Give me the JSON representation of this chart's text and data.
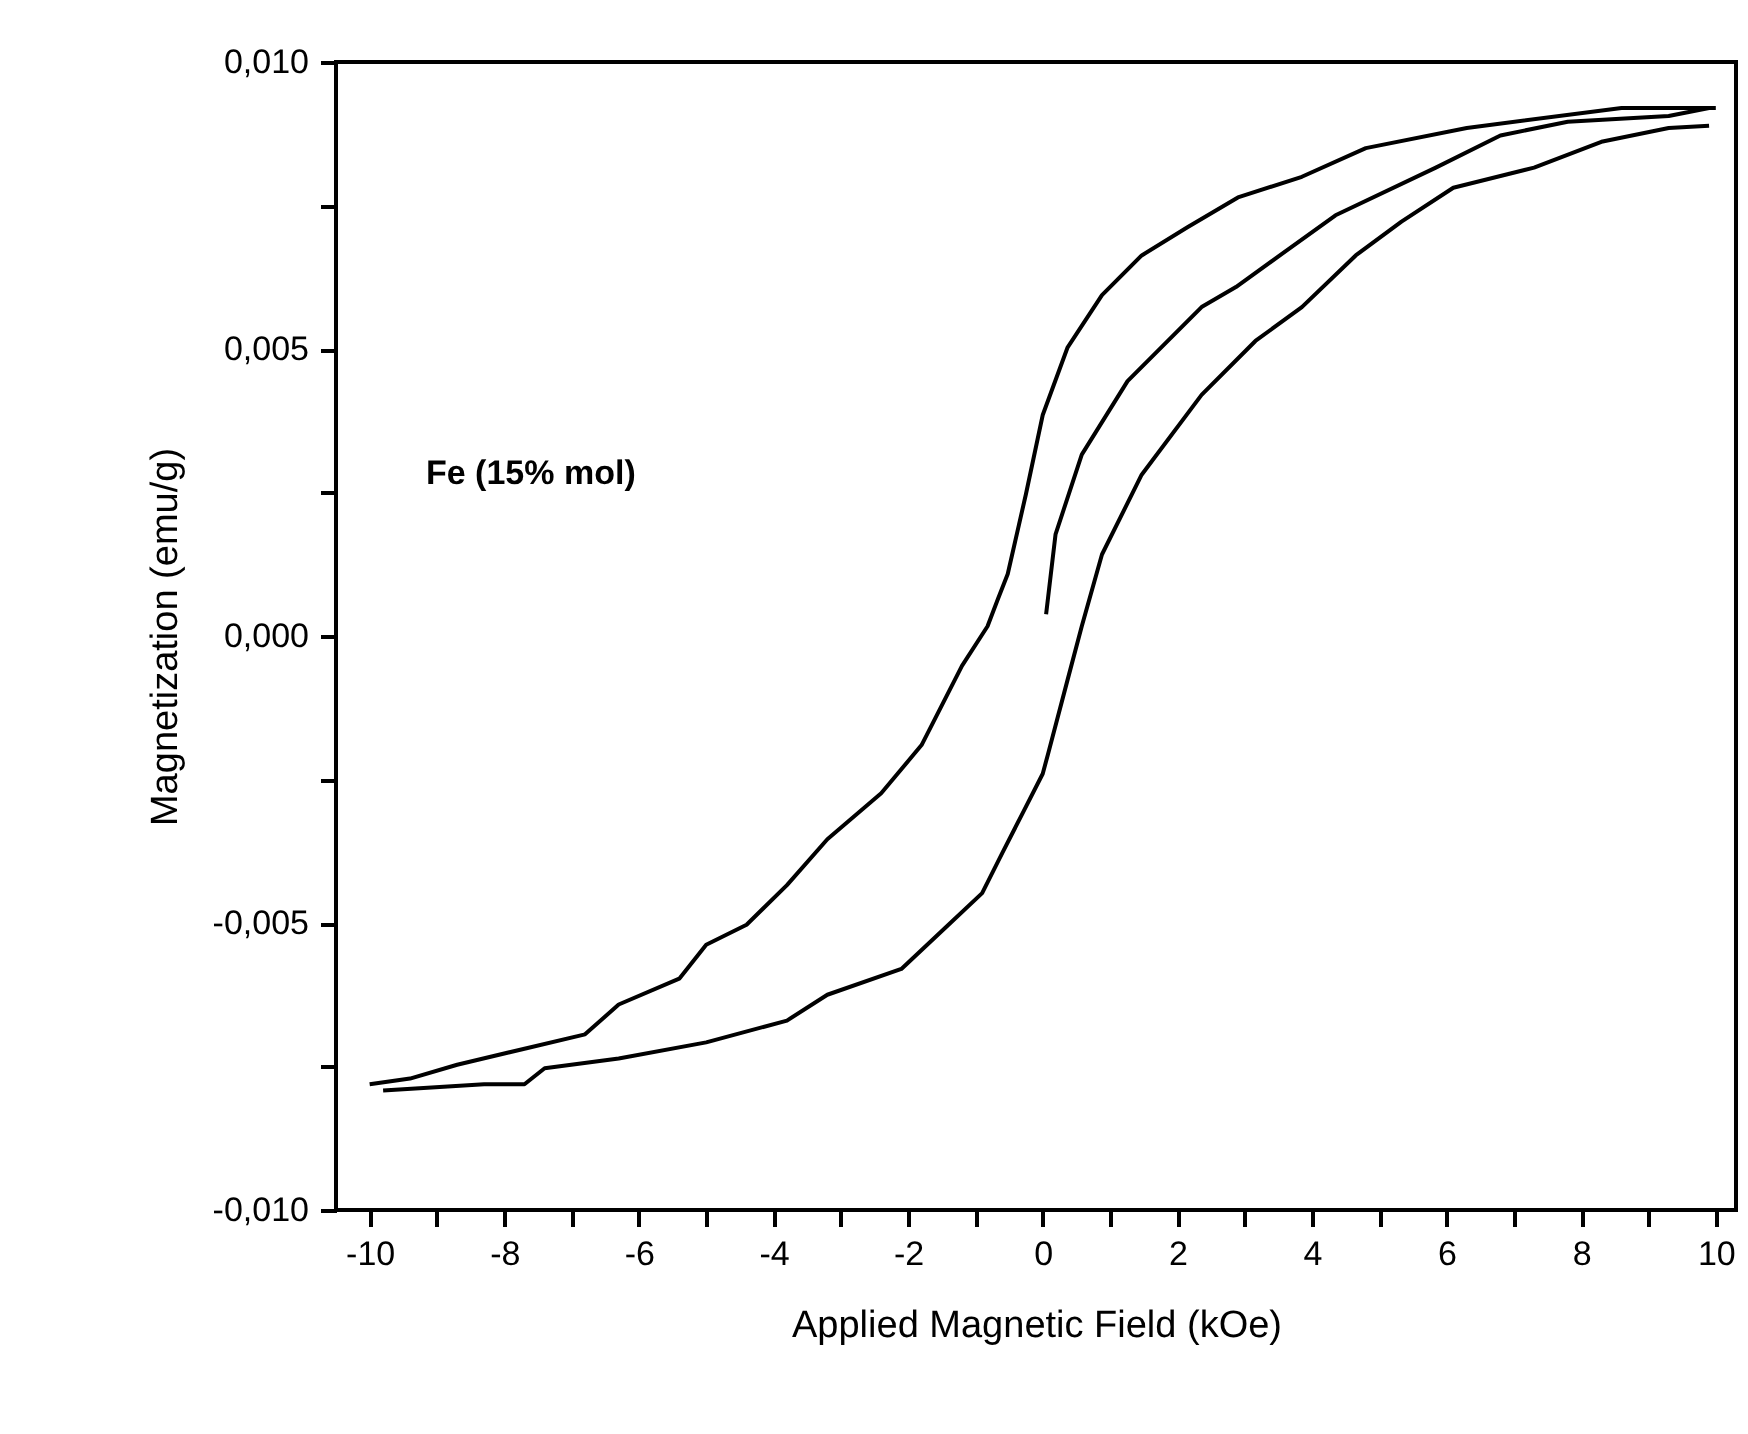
{
  "chart_data": {
    "type": "line",
    "xlabel": "Applied Magnetic Field (kOe)",
    "ylabel": "Magnetization (emu/g)",
    "annotations": [
      "Fe (15% mol)"
    ],
    "xlim": [
      -10.5,
      10.3
    ],
    "ylim": [
      -0.01,
      0.01
    ],
    "xticks": [
      -10,
      {
        "value": -9,
        "label": null
      },
      -8,
      {
        "value": -7,
        "label": null
      },
      -6,
      {
        "value": -5,
        "label": null
      },
      -4,
      {
        "value": -3,
        "label": null
      },
      -2,
      {
        "value": -1,
        "label": null
      },
      0,
      {
        "value": 1,
        "label": null
      },
      2,
      {
        "value": 3,
        "label": null
      },
      4,
      {
        "value": 5,
        "label": null
      },
      6,
      {
        "value": 7,
        "label": null
      },
      8,
      {
        "value": 9,
        "label": null
      },
      10
    ],
    "yticks": [
      {
        "value": -0.01,
        "label": "-0,010"
      },
      {
        "value": -0.0075,
        "label": null
      },
      {
        "value": -0.005,
        "label": "-0,005"
      },
      {
        "value": -0.0025,
        "label": null
      },
      {
        "value": 0,
        "label": "0,000"
      },
      {
        "value": 0.0025,
        "label": null
      },
      {
        "value": 0.005,
        "label": "0,005"
      },
      {
        "value": 0.0075,
        "label": null
      },
      {
        "value": 0.01,
        "label": "0,010"
      }
    ],
    "grid": false,
    "legend": false,
    "marker": "none",
    "line_style": "solid",
    "series": [
      {
        "color": "#000000",
        "x": [
          0.05,
          0.19,
          0.58,
          1.26,
          2.36,
          2.87,
          4.35,
          5.84,
          6.8,
          7.8,
          9.3,
          9.9
        ],
        "values": [
          0.00038,
          0.00177,
          0.00316,
          0.00444,
          0.00573,
          0.00608,
          0.00733,
          0.00816,
          0.00872,
          0.00896,
          0.00906,
          0.0092
        ]
      },
      {
        "color": "#000000",
        "x": [
          10,
          8.6,
          6.3,
          4.8,
          3.85,
          2.9,
          2.15,
          1.47,
          0.88,
          0.37,
          0,
          -0.25,
          -0.52,
          -0.67,
          -0.82,
          -1.2,
          -1.8,
          -2.4,
          -3.2,
          -3.8,
          -4.4,
          -5.0,
          -5.4,
          -6.3,
          -6.8,
          -7.7,
          -8.7,
          -9.4,
          -10
        ],
        "values": [
          0.0092,
          0.0092,
          0.00885,
          0.0085,
          0.008,
          0.00764,
          0.00712,
          0.00663,
          0.00594,
          0.00503,
          0.00385,
          0.00247,
          0.00108,
          0.00063,
          0.00017,
          -0.00052,
          -0.0019,
          -0.00274,
          -0.00354,
          -0.00434,
          -0.00503,
          -0.00538,
          -0.00597,
          -0.00642,
          -0.00694,
          -0.00719,
          -0.00747,
          -0.00771,
          -0.00781
        ]
      },
      {
        "color": "#000000",
        "x": [
          -9.8,
          -8.3,
          -7.7,
          -7.4,
          -6.3,
          -5.0,
          -3.8,
          -3.2,
          -2.1,
          -1.4,
          -0.9,
          -0.6,
          -0.3,
          0,
          0.08,
          0.37,
          0.58,
          0.88,
          1.47,
          2.36,
          3.16,
          3.85,
          4.65,
          5.33,
          6.1,
          7.3,
          8.3,
          9.3,
          9.9
        ],
        "values": [
          -0.00792,
          -0.00781,
          -0.00781,
          -0.00753,
          -0.00736,
          -0.00708,
          -0.0067,
          -0.00625,
          -0.0058,
          -0.00503,
          -0.00448,
          -0.00378,
          -0.00309,
          -0.0024,
          -0.00205,
          -0.00076,
          0.00017,
          0.00142,
          0.00281,
          0.0042,
          0.00514,
          0.00573,
          0.00663,
          0.00722,
          0.00781,
          0.00816,
          0.00861,
          0.00885,
          0.00889
        ]
      }
    ]
  }
}
